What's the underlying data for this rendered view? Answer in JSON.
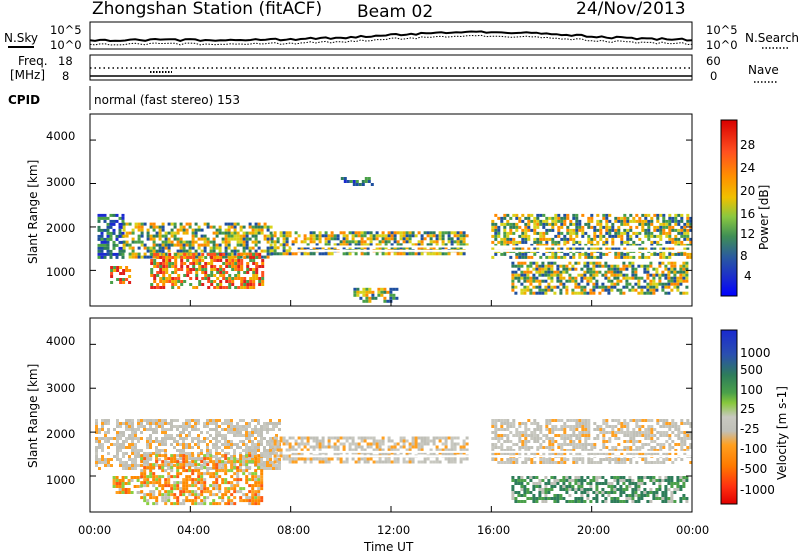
{
  "header": {
    "station": "Zhongshan Station (fitACF)",
    "beam": "Beam 02",
    "date": "24/Nov/2013"
  },
  "noise_panel": {
    "left_label": "N.Sky",
    "right_label": "N.Search",
    "left_ticks": [
      "10^5",
      "10^0"
    ],
    "right_ticks": [
      "10^5",
      "10^0"
    ]
  },
  "freq_panel": {
    "left_label_1": "Freq.",
    "left_label_2": "[MHz]",
    "right_label": "Nave",
    "left_ticks": [
      "18",
      "8"
    ],
    "right_ticks": [
      "60",
      "0"
    ],
    "nave_values": [
      0,
      60
    ]
  },
  "cpid": {
    "label": "CPID",
    "value": "normal (fast stereo) 153"
  },
  "axes": {
    "ylabel": "Slant Range [km]",
    "y_ticks": [
      "4000",
      "3000",
      "2000",
      "1000"
    ],
    "x_ticks": [
      "00:00",
      "04:00",
      "08:00",
      "12:00",
      "16:00",
      "20:00",
      "00:00"
    ],
    "xlabel": "Time UT"
  },
  "power_colorbar": {
    "label": "Power [dB]",
    "ticks": [
      "28",
      "24",
      "20",
      "16",
      "12",
      "8",
      "4"
    ],
    "colors": [
      "#e0201c",
      "#ff5020",
      "#ff8a00",
      "#f0b000",
      "#d8d41c",
      "#88c83c",
      "#4aa048",
      "#2e7d5a",
      "#1e4fa0",
      "#1a2ad0",
      "#0000ff"
    ]
  },
  "velocity_colorbar": {
    "label": "Velocity [m s-1]",
    "ticks": [
      "1000",
      "500",
      "100",
      "25",
      "-25",
      "-100",
      "-500",
      "-1000"
    ],
    "colors": [
      "#1a2ad0",
      "#2a4fb0",
      "#2e7d5a",
      "#4aa04a",
      "#8ad040",
      "#c8c8c0",
      "#c0c0b8",
      "#ffa020",
      "#ff8a00",
      "#ff5a10",
      "#ff2a10",
      "#e00000"
    ]
  },
  "chart_data": {
    "type": "heatmap",
    "title": "Zhongshan Station (fitACF) Beam 02 24/Nov/2013",
    "xlabel": "Time UT",
    "ylabel": "Slant Range [km]",
    "xlim": [
      0,
      24
    ],
    "ylim": [
      180,
      4600
    ],
    "x_ticks_hours": [
      0,
      4,
      8,
      12,
      16,
      20,
      24
    ],
    "y_ticks_km": [
      1000,
      2000,
      3000,
      4000
    ],
    "power_range_db": [
      0,
      30
    ],
    "velocity_range_ms": [
      -1000,
      1000
    ],
    "noise_sky_range": [
      1,
      100000
    ],
    "freq_range_mhz": [
      8,
      18
    ],
    "nave_range": [
      0,
      60
    ],
    "power_patches": [
      {
        "t0": 0.3,
        "t1": 1.3,
        "r0": 1300,
        "r1": 2300,
        "level": "low"
      },
      {
        "t0": 1.3,
        "t1": 7.2,
        "r0": 1300,
        "r1": 2100,
        "level": "mid"
      },
      {
        "t0": 0.8,
        "t1": 1.6,
        "r0": 700,
        "r1": 1100,
        "level": "high"
      },
      {
        "t0": 2.4,
        "t1": 6.9,
        "r0": 600,
        "r1": 1400,
        "level": "high"
      },
      {
        "t0": 7.2,
        "t1": 15.0,
        "r0": 1350,
        "r1": 1900,
        "level": "mid"
      },
      {
        "t0": 10.5,
        "t1": 12.2,
        "r0": 300,
        "r1": 600,
        "level": "mid"
      },
      {
        "t0": 10.0,
        "t1": 11.3,
        "r0": 2950,
        "r1": 3150,
        "level": "low"
      },
      {
        "t0": 16.0,
        "t1": 24.0,
        "r0": 1300,
        "r1": 2300,
        "level": "mid"
      },
      {
        "t0": 16.8,
        "t1": 23.8,
        "r0": 500,
        "r1": 1200,
        "level": "mid"
      }
    ],
    "velocity_patches": [
      {
        "t0": 0.2,
        "t1": 7.5,
        "r0": 1200,
        "r1": 2300,
        "class": "near-zero"
      },
      {
        "t0": 0.9,
        "t1": 2.0,
        "r0": 600,
        "r1": 1000,
        "class": "-100 to -500"
      },
      {
        "t0": 2.0,
        "t1": 6.9,
        "r0": 400,
        "r1": 1500,
        "class": "-100 to -500"
      },
      {
        "t0": 7.2,
        "t1": 15.0,
        "r0": 1350,
        "r1": 1900,
        "class": "near-zero"
      },
      {
        "t0": 16.0,
        "t1": 24.0,
        "r0": 1300,
        "r1": 2300,
        "class": "near-zero"
      },
      {
        "t0": 16.8,
        "t1": 23.8,
        "r0": 400,
        "r1": 1000,
        "class": "100 to 500"
      }
    ]
  }
}
